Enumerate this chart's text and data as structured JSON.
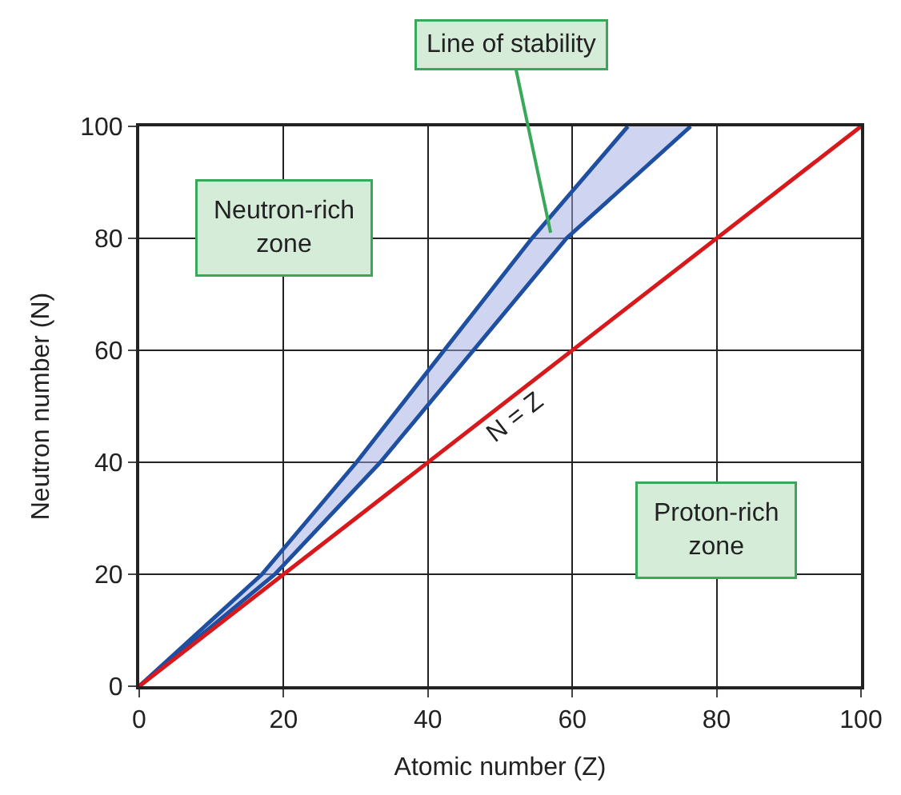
{
  "chart_data": {
    "type": "line",
    "xlabel": "Atomic number (Z)",
    "ylabel": "Neutron number (N)",
    "xlim": [
      0,
      100
    ],
    "ylim": [
      0,
      100
    ],
    "xticks": [
      0,
      20,
      40,
      60,
      80,
      100
    ],
    "yticks": [
      0,
      20,
      40,
      60,
      80,
      100
    ],
    "grid": true,
    "legend": false,
    "series": [
      {
        "color": "#1f4fa0",
        "x": [
          0,
          17,
          30.1,
          54.4,
          67.7
        ],
        "values": [
          0,
          20,
          40,
          80,
          100
        ]
      },
      {
        "type": "area",
        "color": "#1f4fa0",
        "x": [
          0,
          18.8,
          33.4,
          59.2,
          76.4
        ],
        "values": [
          0,
          20,
          40,
          80,
          100
        ]
      },
      {
        "color": "#d7191c",
        "x": [
          0,
          100
        ],
        "values": [
          0,
          100
        ]
      }
    ],
    "annotations": [
      "Line of stability",
      "Neutron-rich\nzone",
      "Proton-rich\nzone",
      "N = Z"
    ]
  }
}
